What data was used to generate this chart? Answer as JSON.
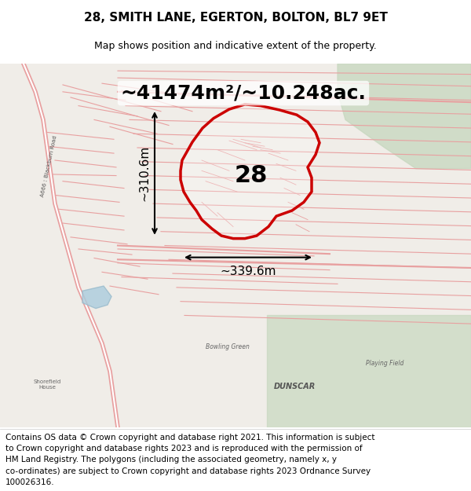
{
  "title": "28, SMITH LANE, EGERTON, BOLTON, BL7 9ET",
  "subtitle": "Map shows position and indicative extent of the property.",
  "area_text": "~41474m²/~10.248ac.",
  "dim1_text": "~310.6m",
  "dim2_text": "~339.6m",
  "label_28": "28",
  "footer_line1": "Contains OS data © Crown copyright and database right 2021. This information is subject",
  "footer_line2": "to Crown copyright and database rights 2023 and is reproduced with the permission of",
  "footer_line3": "HM Land Registry. The polygons (including the associated geometry, namely x, y",
  "footer_line4": "co-ordinates) are subject to Crown copyright and database rights 2023 Ordnance Survey",
  "footer_line5": "100026316.",
  "map_bg_color": "#f0ede8",
  "map_road_color": "#e8a0a0",
  "highlight_color": "#cc0000",
  "green_area_color": "#c8d8c0",
  "title_fontsize": 11,
  "subtitle_fontsize": 9,
  "area_fontsize": 18,
  "dim_fontsize": 11,
  "label_fontsize": 22,
  "footer_fontsize": 7.5,
  "fig_width": 6.0,
  "fig_height": 6.25
}
